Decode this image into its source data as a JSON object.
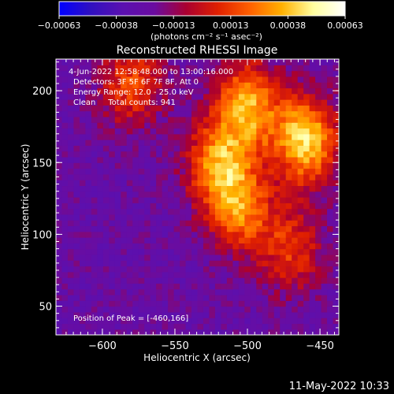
{
  "chart_data": {
    "type": "heatmap",
    "title": "Reconstructed RHESSI Image",
    "xlabel": "Heliocentric X (arcsec)",
    "ylabel": "Heliocentric Y (arcsec)",
    "xlim": [
      -632,
      -437
    ],
    "ylim": [
      30,
      222
    ],
    "xticks": [
      -600,
      -550,
      -500,
      -450
    ],
    "yticks": [
      50,
      100,
      150,
      200
    ],
    "xtick_labels": [
      "−600",
      "−550",
      "−500",
      "−450"
    ],
    "ytick_labels": [
      "50",
      "100",
      "150",
      "200"
    ],
    "colorbar": {
      "range": [
        -0.00063,
        0.00063
      ],
      "ticks": [
        "−0.00063",
        "−0.00038",
        "−0.00013",
        "0.00013",
        "0.00038",
        "0.00063"
      ],
      "units": "(photons cm⁻² s⁻¹ asec⁻²)",
      "colormap": [
        "#0000ff",
        "#3010c0",
        "#5a10b0",
        "#6a0ca0",
        "#aa0030",
        "#e02000",
        "#ff6000",
        "#ffb000",
        "#ffffa0",
        "#ffffff"
      ]
    },
    "sources": [
      {
        "x": -460,
        "y": 166,
        "peak": 1.0
      },
      {
        "x": -500,
        "y": 190,
        "peak": 0.85
      },
      {
        "x": -520,
        "y": 150,
        "peak": 0.75
      },
      {
        "x": -505,
        "y": 118,
        "peak": 0.7
      },
      {
        "x": -580,
        "y": 205,
        "peak": 0.55
      },
      {
        "x": -470,
        "y": 90,
        "peak": 0.5
      }
    ],
    "annotations": {
      "time_range": "4-Jun-2022 12:58:48.000 to 13:00:16.000",
      "detectors": "Detectors: 3F 5F 6F 7F 8F, Att 0",
      "energy": "Energy Range: 12.0 - 25.0 keV",
      "clean": "Clean     Total counts: 941",
      "peak": "Position of Peak = [-460,166]"
    }
  },
  "timestamp": "11-May-2022 10:33"
}
